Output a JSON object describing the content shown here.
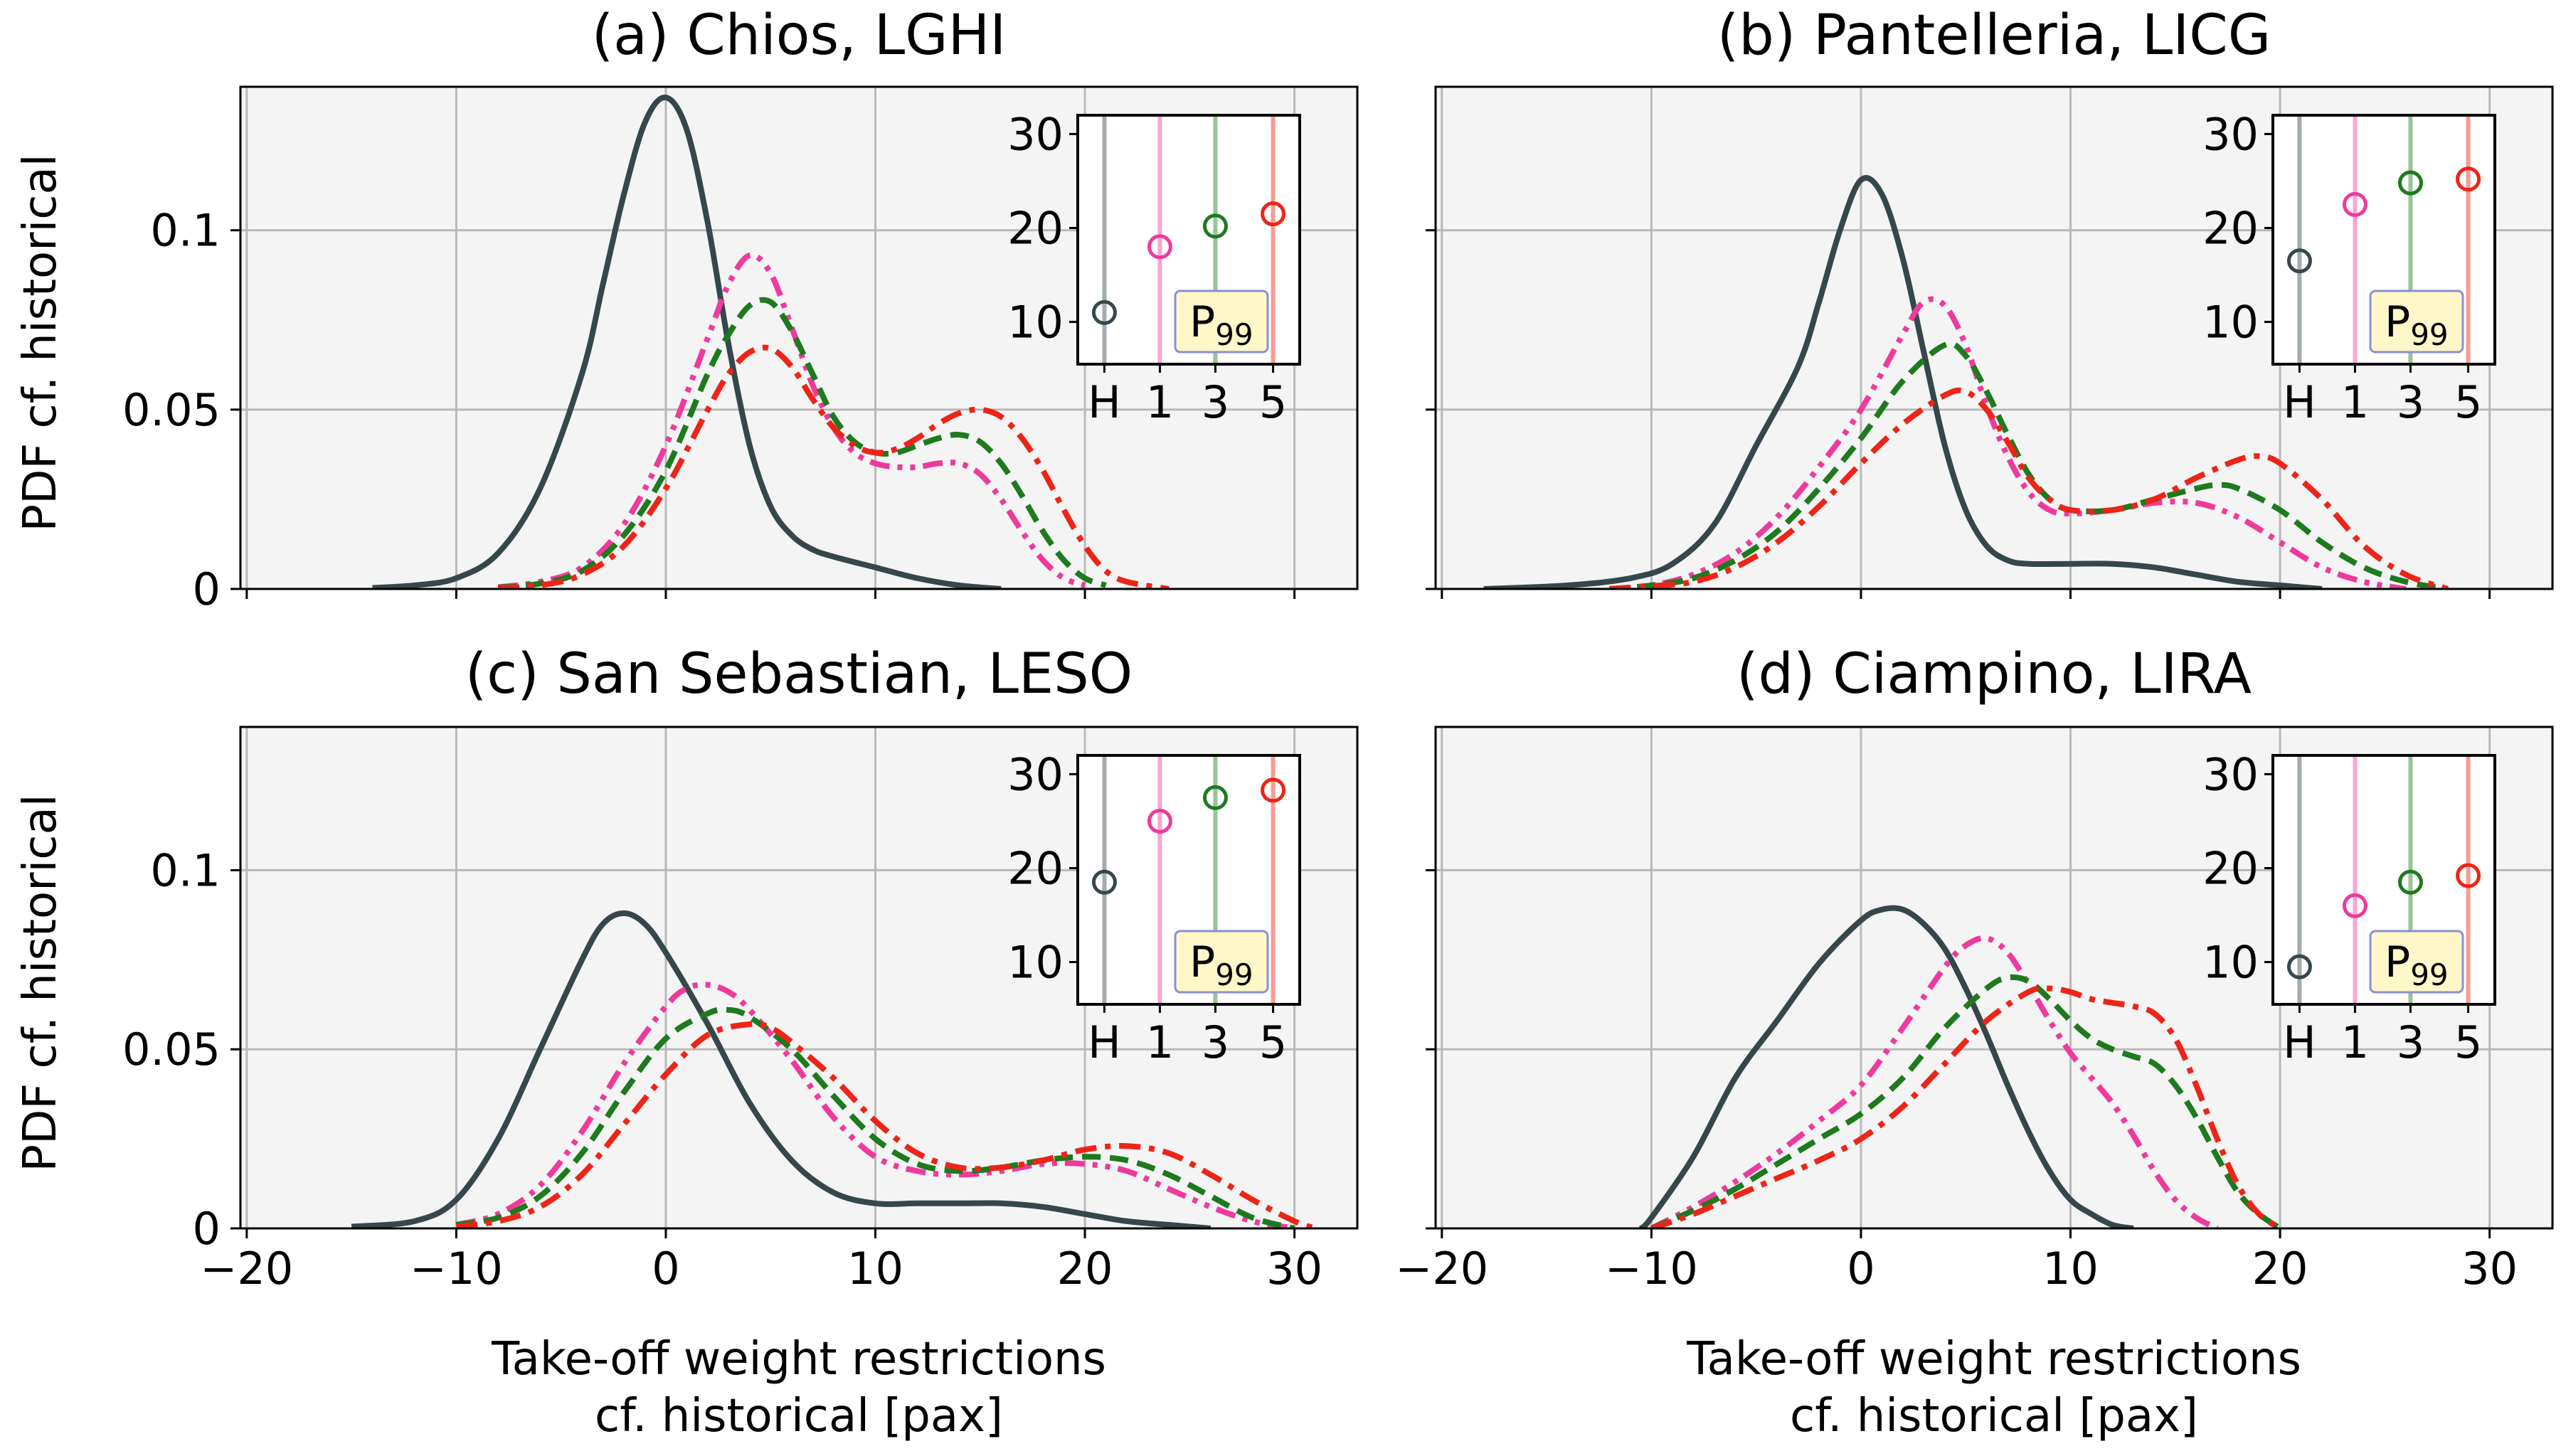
{
  "chart_data": {
    "type": "line",
    "figure": {
      "ylabel": "PDF cf. historical",
      "xlabel_line1": "Take-off weight restrictions",
      "xlabel_line2": "cf. historical [pax]",
      "xlim": [
        -20.3,
        33
      ],
      "ylim": [
        0,
        0.14
      ],
      "x_ticks": [
        -20,
        -10,
        0,
        10,
        20,
        30
      ],
      "x_tick_labels": [
        "−20",
        "−10",
        "0",
        "10",
        "20",
        "30"
      ],
      "y_ticks": [
        0,
        0.05,
        0.1
      ],
      "y_tick_labels": [
        "0",
        "0.05",
        "0.1"
      ],
      "inset_ylim": [
        5.5,
        32
      ],
      "inset_y_ticks": [
        10,
        20,
        30
      ],
      "inset_y_tick_labels": [
        "10",
        "20",
        "30"
      ],
      "inset_categories": [
        "H",
        "1",
        "3",
        "5"
      ],
      "inset_badge_main": "P",
      "inset_badge_sub": "99",
      "series_styles": [
        {
          "name": "H",
          "color": "#36474c",
          "dash": ""
        },
        {
          "name": "1",
          "color": "#ee3a9d",
          "dash": "28 11 7 11 7 11"
        },
        {
          "name": "3",
          "color": "#1d7a1d",
          "dash": "26 13"
        },
        {
          "name": "5",
          "color": "#ed2417",
          "dash": "30 12 8 12"
        }
      ]
    },
    "panels": [
      {
        "title": "(a) Chios, LGHI",
        "p99_values": [
          11,
          18,
          20.2,
          21.5
        ],
        "series": [
          {
            "name": "H",
            "x": [
              -14,
              -12,
              -10,
              -8,
              -6,
              -4,
              -3,
              -2,
              -1,
              0,
              1,
              2,
              3,
              4,
              5,
              6,
              7,
              8,
              10,
              12,
              14,
              16
            ],
            "y": [
              0.0003,
              0.001,
              0.003,
              0.01,
              0.028,
              0.06,
              0.085,
              0.11,
              0.13,
              0.137,
              0.128,
              0.102,
              0.068,
              0.04,
              0.023,
              0.015,
              0.011,
              0.009,
              0.006,
              0.003,
              0.001,
              0
            ]
          },
          {
            "name": "1",
            "x": [
              -8,
              -6,
              -4,
              -2,
              0,
              2,
              3,
              4,
              5,
              6,
              7,
              8,
              9,
              10,
              11,
              12,
              13,
              14,
              15,
              16,
              17,
              18,
              19,
              20
            ],
            "y": [
              0.0005,
              0.002,
              0.006,
              0.018,
              0.04,
              0.07,
              0.085,
              0.093,
              0.088,
              0.073,
              0.057,
              0.045,
              0.038,
              0.035,
              0.034,
              0.034,
              0.035,
              0.035,
              0.032,
              0.025,
              0.016,
              0.008,
              0.003,
              0.001
            ]
          },
          {
            "name": "3",
            "x": [
              -8,
              -6,
              -4,
              -2,
              0,
              2,
              3,
              4,
              5,
              6,
              7,
              8,
              9,
              10,
              11,
              12,
              13,
              14,
              15,
              16,
              17,
              18,
              19,
              20,
              21
            ],
            "y": [
              0.0004,
              0.0015,
              0.005,
              0.015,
              0.033,
              0.06,
              0.071,
              0.079,
              0.08,
              0.072,
              0.06,
              0.048,
              0.041,
              0.038,
              0.038,
              0.04,
              0.042,
              0.043,
              0.041,
              0.035,
              0.026,
              0.016,
              0.008,
              0.003,
              0.001
            ]
          },
          {
            "name": "5",
            "x": [
              -8,
              -6,
              -4,
              -2,
              0,
              2,
              3,
              4,
              5,
              6,
              7,
              8,
              9,
              10,
              11,
              12,
              13,
              14,
              15,
              16,
              17,
              18,
              19,
              20,
              21,
              22,
              24
            ],
            "y": [
              0.0003,
              0.001,
              0.004,
              0.012,
              0.028,
              0.05,
              0.06,
              0.066,
              0.067,
              0.062,
              0.053,
              0.045,
              0.04,
              0.038,
              0.039,
              0.042,
              0.046,
              0.049,
              0.05,
              0.048,
              0.042,
              0.033,
              0.022,
              0.012,
              0.005,
              0.002,
              0
            ]
          }
        ]
      },
      {
        "title": "(b) Pantelleria, LICG",
        "p99_values": [
          16.5,
          22.5,
          24.8,
          25.2
        ],
        "series": [
          {
            "name": "H",
            "x": [
              -18,
              -14,
              -11,
              -9,
              -7,
              -5,
              -3,
              -2,
              -1,
              0,
              1,
              2,
              3,
              4,
              5,
              6,
              7,
              8,
              10,
              12,
              14,
              16,
              18,
              20,
              22
            ],
            "y": [
              0,
              0.001,
              0.003,
              0.007,
              0.018,
              0.04,
              0.062,
              0.08,
              0.1,
              0.114,
              0.11,
              0.092,
              0.066,
              0.04,
              0.022,
              0.012,
              0.008,
              0.007,
              0.007,
              0.007,
              0.006,
              0.004,
              0.002,
              0.001,
              0
            ]
          },
          {
            "name": "1",
            "x": [
              -12,
              -10,
              -8,
              -6,
              -4,
              -2,
              0,
              2,
              3,
              4,
              5,
              6,
              7,
              8,
              9,
              10,
              12,
              14,
              16,
              18,
              20,
              22,
              24,
              26
            ],
            "y": [
              0,
              0.001,
              0.004,
              0.01,
              0.02,
              0.034,
              0.05,
              0.071,
              0.08,
              0.079,
              0.068,
              0.051,
              0.037,
              0.027,
              0.022,
              0.021,
              0.022,
              0.024,
              0.024,
              0.02,
              0.013,
              0.006,
              0.002,
              0
            ]
          },
          {
            "name": "3",
            "x": [
              -12,
              -10,
              -8,
              -6,
              -4,
              -2,
              0,
              2,
              4,
              5,
              6,
              7,
              8,
              9,
              10,
              12,
              14,
              16,
              17,
              18,
              20,
              22,
              24,
              26,
              28
            ],
            "y": [
              0,
              0.001,
              0.003,
              0.008,
              0.016,
              0.028,
              0.042,
              0.058,
              0.068,
              0.065,
              0.055,
              0.043,
              0.032,
              0.025,
              0.022,
              0.022,
              0.025,
              0.028,
              0.029,
              0.028,
              0.022,
              0.013,
              0.006,
              0.002,
              0
            ]
          },
          {
            "name": "5",
            "x": [
              -12,
              -10,
              -8,
              -6,
              -4,
              -2,
              0,
              2,
              4,
              5,
              6,
              7,
              8,
              9,
              10,
              12,
              14,
              16,
              18,
              19,
              20,
              22,
              24,
              26,
              28
            ],
            "y": [
              0,
              0.0008,
              0.002,
              0.006,
              0.013,
              0.023,
              0.035,
              0.046,
              0.054,
              0.055,
              0.05,
              0.041,
              0.031,
              0.025,
              0.022,
              0.022,
              0.025,
              0.031,
              0.036,
              0.037,
              0.035,
              0.025,
              0.012,
              0.004,
              0
            ]
          }
        ]
      },
      {
        "title": "(c) San Sebastian, LESO",
        "p99_values": [
          18.5,
          25,
          27.5,
          28.3
        ],
        "series": [
          {
            "name": "H",
            "x": [
              -15,
              -12,
              -10,
              -8,
              -6,
              -4,
              -3,
              -2,
              -1,
              0,
              2,
              4,
              6,
              8,
              10,
              12,
              14,
              16,
              18,
              20,
              22,
              24,
              26
            ],
            "y": [
              0.0005,
              0.002,
              0.008,
              0.025,
              0.05,
              0.075,
              0.085,
              0.088,
              0.085,
              0.077,
              0.057,
              0.035,
              0.019,
              0.01,
              0.007,
              0.007,
              0.007,
              0.007,
              0.006,
              0.004,
              0.002,
              0.001,
              0
            ]
          },
          {
            "name": "1",
            "x": [
              -10,
              -8,
              -6,
              -4,
              -2,
              0,
              1,
              2,
              3,
              4,
              6,
              8,
              10,
              12,
              14,
              16,
              18,
              20,
              22,
              24,
              26,
              28,
              30
            ],
            "y": [
              0.001,
              0.004,
              0.012,
              0.027,
              0.046,
              0.062,
              0.067,
              0.068,
              0.066,
              0.061,
              0.047,
              0.031,
              0.02,
              0.016,
              0.015,
              0.016,
              0.018,
              0.018,
              0.016,
              0.011,
              0.006,
              0.002,
              0
            ]
          },
          {
            "name": "3",
            "x": [
              -10,
              -8,
              -6,
              -4,
              -2,
              0,
              2,
              3,
              4,
              6,
              8,
              10,
              12,
              14,
              16,
              18,
              20,
              22,
              24,
              26,
              28,
              30
            ],
            "y": [
              0.001,
              0.003,
              0.009,
              0.021,
              0.038,
              0.053,
              0.06,
              0.061,
              0.059,
              0.05,
              0.037,
              0.025,
              0.018,
              0.016,
              0.017,
              0.019,
              0.02,
              0.019,
              0.015,
              0.009,
              0.003,
              0
            ]
          },
          {
            "name": "5",
            "x": [
              -10,
              -8,
              -6,
              -4,
              -2,
              0,
              2,
              4,
              5,
              6,
              8,
              10,
              12,
              14,
              16,
              18,
              20,
              22,
              24,
              26,
              28,
              30,
              31
            ],
            "y": [
              0.0005,
              0.002,
              0.006,
              0.015,
              0.029,
              0.043,
              0.054,
              0.057,
              0.056,
              0.052,
              0.042,
              0.03,
              0.021,
              0.017,
              0.017,
              0.019,
              0.022,
              0.023,
              0.021,
              0.015,
              0.008,
              0.002,
              0
            ]
          }
        ]
      },
      {
        "title": "(d) Ciampino, LIRA",
        "p99_values": [
          9.5,
          16,
          18.5,
          19.2
        ],
        "series": [
          {
            "name": "H",
            "x": [
              -10.5,
              -10,
              -8,
              -6,
              -4,
              -2,
              0,
              1,
              2,
              3,
              4,
              5,
              6,
              7,
              8,
              9,
              10,
              11,
              12,
              13
            ],
            "y": [
              0,
              0.003,
              0.02,
              0.042,
              0.058,
              0.074,
              0.086,
              0.089,
              0.089,
              0.085,
              0.078,
              0.067,
              0.054,
              0.04,
              0.027,
              0.016,
              0.008,
              0.004,
              0.001,
              0
            ]
          },
          {
            "name": "1",
            "x": [
              -10,
              -8,
              -6,
              -4,
              -2,
              0,
              2,
              4,
              5,
              6,
              7,
              8,
              9,
              10,
              11,
              12,
              13,
              14,
              15,
              16,
              17
            ],
            "y": [
              0,
              0.006,
              0.013,
              0.021,
              0.03,
              0.04,
              0.056,
              0.073,
              0.079,
              0.081,
              0.077,
              0.068,
              0.058,
              0.049,
              0.042,
              0.035,
              0.026,
              0.016,
              0.008,
              0.003,
              0
            ]
          },
          {
            "name": "3",
            "x": [
              -10,
              -8,
              -6,
              -4,
              -2,
              0,
              2,
              4,
              6,
              7,
              8,
              9,
              10,
              11,
              12,
              13,
              14,
              15,
              16,
              17,
              18,
              19,
              20
            ],
            "y": [
              0,
              0.005,
              0.011,
              0.018,
              0.025,
              0.032,
              0.042,
              0.056,
              0.067,
              0.07,
              0.069,
              0.064,
              0.058,
              0.053,
              0.05,
              0.048,
              0.046,
              0.04,
              0.031,
              0.02,
              0.01,
              0.004,
              0
            ]
          },
          {
            "name": "5",
            "x": [
              -10,
              -8,
              -6,
              -4,
              -2,
              0,
              2,
              4,
              6,
              8,
              9,
              10,
              11,
              12,
              13,
              14,
              15,
              16,
              17,
              18,
              19,
              20
            ],
            "y": [
              0,
              0.004,
              0.009,
              0.014,
              0.019,
              0.025,
              0.034,
              0.046,
              0.058,
              0.066,
              0.067,
              0.066,
              0.064,
              0.063,
              0.062,
              0.06,
              0.053,
              0.04,
              0.025,
              0.012,
              0.004,
              0
            ]
          }
        ]
      }
    ]
  }
}
